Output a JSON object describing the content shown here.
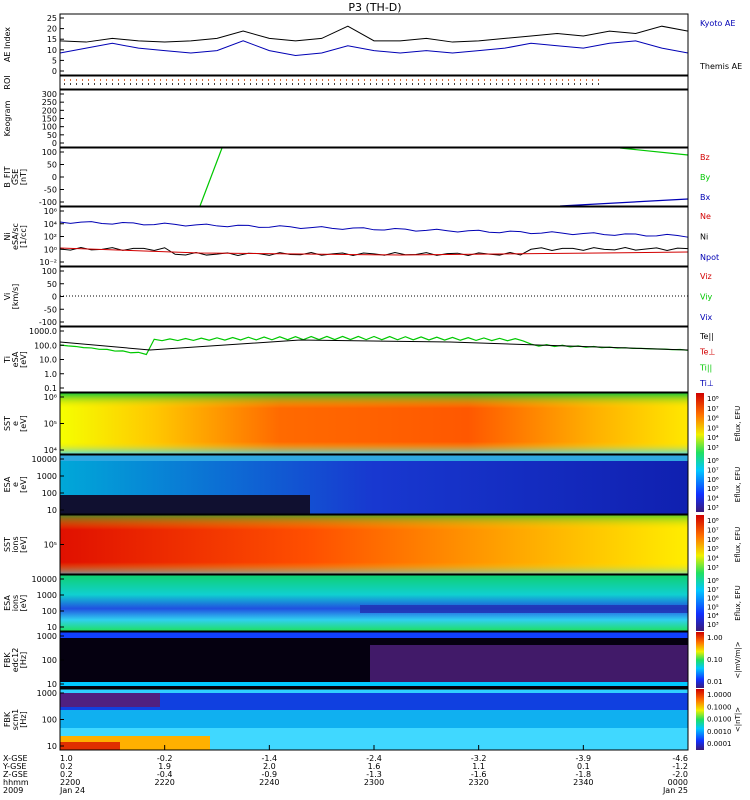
{
  "title": "P3 (TH-D)",
  "colors": {
    "blue": "#0000b4",
    "green": "#00c800",
    "red": "#d20000",
    "black": "#000000"
  },
  "panels": [
    {
      "id": "ae",
      "ylabel": [
        "AE Index"
      ],
      "ticks": [
        "25",
        "20",
        "15",
        "10",
        "5",
        "0"
      ],
      "legend": [
        {
          "text": "Kyoto AE",
          "color": "blue"
        },
        {
          "text": "Themis AE",
          "color": "black"
        }
      ]
    },
    {
      "id": "roi",
      "ylabel": [
        "ROI"
      ],
      "ticks": [],
      "legend": []
    },
    {
      "id": "keogram",
      "ylabel": [
        "Keogram"
      ],
      "ticks": [
        "300",
        "250",
        "200",
        "150",
        "100",
        "50",
        "0"
      ],
      "legend": []
    },
    {
      "id": "bfit",
      "ylabel": [
        "B_FIT",
        "GSE",
        "[nT]"
      ],
      "ticks": [
        "100",
        "50",
        "0",
        "-50",
        "-100"
      ],
      "legend": [
        {
          "text": "Bz",
          "color": "red"
        },
        {
          "text": "By",
          "color": "green"
        },
        {
          "text": "Bx",
          "color": "blue"
        }
      ]
    },
    {
      "id": "ni",
      "ylabel": [
        "Ni",
        "eSA/sc",
        "[1/cc]"
      ],
      "ticks": [
        "10⁶",
        "10⁴",
        "10²",
        "10⁰",
        "10⁻²"
      ],
      "legend": [
        {
          "text": "Ne",
          "color": "red"
        },
        {
          "text": "Ni",
          "color": "black"
        },
        {
          "text": "Npot",
          "color": "blue"
        }
      ]
    },
    {
      "id": "vi",
      "ylabel": [
        "Vi",
        "[km/s]"
      ],
      "ticks": [
        "100",
        "50",
        "0",
        "-50",
        "-100"
      ],
      "legend": [
        {
          "text": "Viz",
          "color": "red"
        },
        {
          "text": "Viy",
          "color": "green"
        },
        {
          "text": "Vix",
          "color": "blue"
        }
      ]
    },
    {
      "id": "ti",
      "ylabel": [
        "Ti",
        "eSA",
        "[eV]"
      ],
      "ticks": [
        "1000.0",
        "100.0",
        "10.0",
        "1.0",
        "0.1"
      ],
      "legend": [
        {
          "text": "Te||",
          "color": "black"
        },
        {
          "text": "Te⊥",
          "color": "red"
        },
        {
          "text": "Ti||",
          "color": "green"
        },
        {
          "text": "Ti⊥",
          "color": "blue"
        }
      ]
    },
    {
      "id": "sst_e",
      "ylabel": [
        "SST",
        "e",
        "[eV]"
      ],
      "ticks": [
        "10⁶",
        "10⁵",
        "10⁴"
      ],
      "legend": [],
      "cbar": {
        "labels": [
          "10⁸",
          "10⁷",
          "10⁶",
          "10⁵",
          "10⁴",
          "10³"
        ],
        "title": "Eflux, EFU"
      }
    },
    {
      "id": "esa_e",
      "ylabel": [
        "ESA",
        "e",
        "[eV]"
      ],
      "ticks": [
        "10000",
        "1000",
        "100",
        "10"
      ],
      "legend": [],
      "cbar": {
        "labels": [
          "10⁸",
          "10⁷",
          "10⁶",
          "10⁵",
          "10⁴",
          "10³"
        ],
        "title": "Eflux, EFU"
      }
    },
    {
      "id": "sst_i",
      "ylabel": [
        "SST",
        "ions",
        "[eV]"
      ],
      "ticks": [
        "10⁵"
      ],
      "legend": [],
      "cbar": {
        "labels": [
          "10⁸",
          "10⁷",
          "10⁶",
          "10⁵",
          "10⁴",
          "10³"
        ],
        "title": "Eflux, EFU"
      }
    },
    {
      "id": "esa_i",
      "ylabel": [
        "ESA",
        "ions",
        "[eV]"
      ],
      "ticks": [
        "10000",
        "1000",
        "100",
        "10"
      ],
      "legend": [],
      "cbar": {
        "labels": [
          "10⁸",
          "10⁷",
          "10⁶",
          "10⁵",
          "10⁴",
          "10³"
        ],
        "title": "Eflux, EFU"
      }
    },
    {
      "id": "fbk_e",
      "ylabel": [
        "FBK",
        "edc12",
        "[Hz]"
      ],
      "ticks": [
        "1000",
        "100",
        "10"
      ],
      "legend": [],
      "cbar": {
        "labels": [
          "1.00",
          "0.10",
          "0.01"
        ],
        "title": "<|mV/m|>"
      }
    },
    {
      "id": "fbk_b",
      "ylabel": [
        "FBK",
        "scm1",
        "[Hz]"
      ],
      "ticks": [
        "1000",
        "100",
        "10"
      ],
      "legend": [],
      "cbar": {
        "labels": [
          "1.0000",
          "0.1000",
          "0.0100",
          "0.0010",
          "0.0001"
        ],
        "title": "<|nT|>"
      }
    }
  ],
  "footer": {
    "row_labels": [
      "X-GSE",
      "Y-GSE",
      "Z-GSE",
      "hhmm",
      "2009"
    ],
    "columns": [
      {
        "vals": [
          "1.0",
          "0.2",
          "0.2",
          "2200",
          "Jan 24"
        ]
      },
      {
        "vals": [
          "-0.2",
          "1.9",
          "-0.4",
          "2220",
          ""
        ]
      },
      {
        "vals": [
          "-1.4",
          "2.0",
          "-0.9",
          "2240",
          ""
        ]
      },
      {
        "vals": [
          "-2.4",
          "1.6",
          "-1.3",
          "2300",
          ""
        ]
      },
      {
        "vals": [
          "-3.2",
          "1.1",
          "-1.6",
          "2320",
          ""
        ]
      },
      {
        "vals": [
          "-3.9",
          "0.1",
          "-1.8",
          "2340",
          ""
        ]
      },
      {
        "vals": [
          "-4.6",
          "-1.2",
          "-2.0",
          "0000",
          "Jan 25"
        ]
      }
    ]
  },
  "chart_data": {
    "type": "line",
    "title": "P3 (TH-D)",
    "x_ticks": [
      "2200",
      "2220",
      "2240",
      "2300",
      "2320",
      "2340",
      "0000"
    ],
    "series": [
      {
        "panel": "ae",
        "name": "Themis AE",
        "values": [
          14,
          13.5,
          15,
          14,
          13.5,
          14,
          15,
          18,
          15,
          14,
          15,
          20,
          14,
          14,
          15,
          13.5,
          14,
          15,
          16,
          17,
          16,
          18,
          17,
          20,
          18
        ]
      },
      {
        "panel": "ae",
        "name": "Kyoto AE",
        "values": [
          9,
          11,
          13,
          11,
          10,
          9,
          10,
          14,
          10,
          8,
          9,
          12,
          10,
          9,
          10,
          9,
          10,
          11,
          13,
          12,
          11,
          13,
          14,
          11,
          9
        ]
      }
    ]
  }
}
